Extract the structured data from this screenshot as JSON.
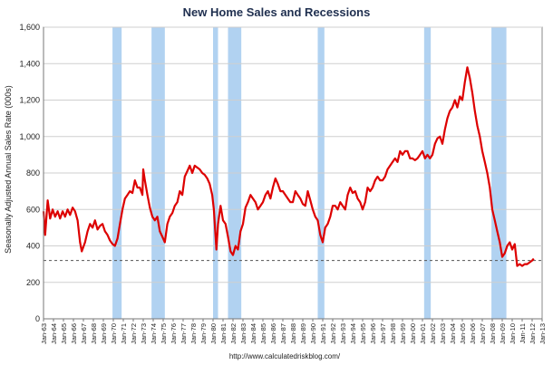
{
  "chart_data": {
    "type": "line",
    "title": "New Home Sales and Recessions",
    "ylabel": "Seasonally Adjusted Annual Sales Rate (000s)",
    "xlabel": "",
    "source": "http://www.calculatedriskblog.com/",
    "ylim": [
      0,
      1600
    ],
    "yticks": [
      "0",
      "200",
      "400",
      "600",
      "800",
      "1,000",
      "1,200",
      "1,400",
      "1,600"
    ],
    "xlim": [
      "1963-01",
      "2013-01"
    ],
    "xticks": [
      "Jan-63",
      "Jan-64",
      "Jan-65",
      "Jan-66",
      "Jan-67",
      "Jan-68",
      "Jan-69",
      "Jan-70",
      "Jan-71",
      "Jan-72",
      "Jan-73",
      "Jan-74",
      "Jan-75",
      "Jan-76",
      "Jan-77",
      "Jan-78",
      "Jan-79",
      "Jan-80",
      "Jan-81",
      "Jan-82",
      "Jan-83",
      "Jan-84",
      "Jan-85",
      "Jan-86",
      "Jan-87",
      "Jan-88",
      "Jan-89",
      "Jan-90",
      "Jan-91",
      "Jan-92",
      "Jan-93",
      "Jan-94",
      "Jan-95",
      "Jan-96",
      "Jan-97",
      "Jan-98",
      "Jan-99",
      "Jan-00",
      "Jan-01",
      "Jan-02",
      "Jan-03",
      "Jan-04",
      "Jan-05",
      "Jan-06",
      "Jan-07",
      "Jan-08",
      "Jan-09",
      "Jan-10",
      "Jan-11",
      "Jan-12",
      "Jan-13"
    ],
    "grid": true,
    "reference_line": {
      "value": 320,
      "style": "dashed"
    },
    "recessions": [
      [
        "1969-12",
        "1970-11"
      ],
      [
        "1973-11",
        "1975-03"
      ],
      [
        "1980-01",
        "1980-07"
      ],
      [
        "1981-07",
        "1982-11"
      ],
      [
        "1990-07",
        "1991-03"
      ],
      [
        "2001-03",
        "2001-11"
      ],
      [
        "2007-12",
        "2009-06"
      ]
    ],
    "series": [
      {
        "color": "#dd0000",
        "points": [
          [
            "1963-01",
            590
          ],
          [
            "1963-03",
            460
          ],
          [
            "1963-06",
            650
          ],
          [
            "1963-09",
            550
          ],
          [
            "1963-12",
            600
          ],
          [
            "1964-03",
            560
          ],
          [
            "1964-06",
            590
          ],
          [
            "1964-09",
            550
          ],
          [
            "1964-12",
            590
          ],
          [
            "1965-03",
            560
          ],
          [
            "1965-06",
            600
          ],
          [
            "1965-09",
            570
          ],
          [
            "1965-12",
            610
          ],
          [
            "1966-03",
            590
          ],
          [
            "1966-06",
            540
          ],
          [
            "1966-09",
            420
          ],
          [
            "1966-11",
            370
          ],
          [
            "1967-03",
            420
          ],
          [
            "1967-06",
            480
          ],
          [
            "1967-09",
            520
          ],
          [
            "1967-12",
            500
          ],
          [
            "1968-03",
            540
          ],
          [
            "1968-06",
            490
          ],
          [
            "1968-09",
            510
          ],
          [
            "1968-12",
            520
          ],
          [
            "1969-03",
            480
          ],
          [
            "1969-06",
            460
          ],
          [
            "1969-09",
            430
          ],
          [
            "1969-12",
            410
          ],
          [
            "1970-03",
            400
          ],
          [
            "1970-06",
            440
          ],
          [
            "1970-09",
            520
          ],
          [
            "1970-12",
            600
          ],
          [
            "1971-03",
            660
          ],
          [
            "1971-06",
            680
          ],
          [
            "1971-09",
            700
          ],
          [
            "1971-12",
            690
          ],
          [
            "1972-03",
            760
          ],
          [
            "1972-06",
            720
          ],
          [
            "1972-09",
            720
          ],
          [
            "1972-12",
            680
          ],
          [
            "1973-01",
            820
          ],
          [
            "1973-03",
            760
          ],
          [
            "1973-06",
            680
          ],
          [
            "1973-09",
            610
          ],
          [
            "1973-12",
            560
          ],
          [
            "1974-03",
            540
          ],
          [
            "1974-06",
            560
          ],
          [
            "1974-09",
            480
          ],
          [
            "1974-12",
            450
          ],
          [
            "1975-03",
            420
          ],
          [
            "1975-06",
            520
          ],
          [
            "1975-09",
            560
          ],
          [
            "1975-12",
            580
          ],
          [
            "1976-03",
            620
          ],
          [
            "1976-06",
            640
          ],
          [
            "1976-09",
            700
          ],
          [
            "1976-12",
            680
          ],
          [
            "1977-03",
            780
          ],
          [
            "1977-06",
            810
          ],
          [
            "1977-09",
            840
          ],
          [
            "1977-12",
            800
          ],
          [
            "1978-03",
            840
          ],
          [
            "1978-06",
            830
          ],
          [
            "1978-09",
            820
          ],
          [
            "1978-12",
            800
          ],
          [
            "1979-03",
            790
          ],
          [
            "1979-06",
            770
          ],
          [
            "1979-09",
            740
          ],
          [
            "1979-12",
            680
          ],
          [
            "1980-02",
            600
          ],
          [
            "1980-05",
            380
          ],
          [
            "1980-07",
            520
          ],
          [
            "1980-10",
            620
          ],
          [
            "1981-01",
            540
          ],
          [
            "1981-04",
            520
          ],
          [
            "1981-07",
            450
          ],
          [
            "1981-10",
            370
          ],
          [
            "1982-01",
            350
          ],
          [
            "1982-04",
            400
          ],
          [
            "1982-07",
            380
          ],
          [
            "1982-10",
            480
          ],
          [
            "1983-01",
            520
          ],
          [
            "1983-04",
            610
          ],
          [
            "1983-07",
            640
          ],
          [
            "1983-10",
            680
          ],
          [
            "1984-01",
            660
          ],
          [
            "1984-04",
            640
          ],
          [
            "1984-07",
            600
          ],
          [
            "1984-10",
            620
          ],
          [
            "1985-01",
            640
          ],
          [
            "1985-04",
            680
          ],
          [
            "1985-07",
            700
          ],
          [
            "1985-10",
            660
          ],
          [
            "1986-01",
            720
          ],
          [
            "1986-04",
            770
          ],
          [
            "1986-07",
            740
          ],
          [
            "1986-10",
            700
          ],
          [
            "1987-01",
            700
          ],
          [
            "1987-04",
            680
          ],
          [
            "1987-07",
            660
          ],
          [
            "1987-10",
            640
          ],
          [
            "1988-01",
            640
          ],
          [
            "1988-04",
            700
          ],
          [
            "1988-07",
            680
          ],
          [
            "1988-10",
            660
          ],
          [
            "1989-01",
            630
          ],
          [
            "1989-04",
            620
          ],
          [
            "1989-07",
            700
          ],
          [
            "1989-10",
            650
          ],
          [
            "1990-01",
            600
          ],
          [
            "1990-04",
            560
          ],
          [
            "1990-07",
            540
          ],
          [
            "1990-10",
            460
          ],
          [
            "1991-01",
            420
          ],
          [
            "1991-04",
            500
          ],
          [
            "1991-07",
            520
          ],
          [
            "1991-10",
            560
          ],
          [
            "1992-01",
            620
          ],
          [
            "1992-04",
            620
          ],
          [
            "1992-07",
            600
          ],
          [
            "1992-10",
            640
          ],
          [
            "1993-01",
            620
          ],
          [
            "1993-04",
            600
          ],
          [
            "1993-07",
            680
          ],
          [
            "1993-10",
            720
          ],
          [
            "1994-01",
            690
          ],
          [
            "1994-04",
            700
          ],
          [
            "1994-07",
            660
          ],
          [
            "1994-10",
            640
          ],
          [
            "1995-01",
            600
          ],
          [
            "1995-04",
            640
          ],
          [
            "1995-07",
            720
          ],
          [
            "1995-10",
            700
          ],
          [
            "1996-01",
            720
          ],
          [
            "1996-04",
            760
          ],
          [
            "1996-07",
            780
          ],
          [
            "1996-10",
            760
          ],
          [
            "1997-01",
            760
          ],
          [
            "1997-04",
            780
          ],
          [
            "1997-07",
            820
          ],
          [
            "1997-10",
            840
          ],
          [
            "1998-01",
            860
          ],
          [
            "1998-04",
            880
          ],
          [
            "1998-07",
            860
          ],
          [
            "1998-10",
            920
          ],
          [
            "1999-01",
            900
          ],
          [
            "1999-04",
            920
          ],
          [
            "1999-07",
            920
          ],
          [
            "1999-10",
            880
          ],
          [
            "2000-01",
            880
          ],
          [
            "2000-04",
            870
          ],
          [
            "2000-07",
            880
          ],
          [
            "2000-10",
            900
          ],
          [
            "2001-01",
            920
          ],
          [
            "2001-04",
            880
          ],
          [
            "2001-07",
            900
          ],
          [
            "2001-10",
            880
          ],
          [
            "2002-01",
            900
          ],
          [
            "2002-04",
            960
          ],
          [
            "2002-07",
            990
          ],
          [
            "2002-10",
            1000
          ],
          [
            "2003-01",
            960
          ],
          [
            "2003-04",
            1040
          ],
          [
            "2003-07",
            1100
          ],
          [
            "2003-10",
            1140
          ],
          [
            "2004-01",
            1160
          ],
          [
            "2004-04",
            1200
          ],
          [
            "2004-07",
            1160
          ],
          [
            "2004-10",
            1220
          ],
          [
            "2005-01",
            1200
          ],
          [
            "2005-04",
            1300
          ],
          [
            "2005-07",
            1380
          ],
          [
            "2005-10",
            1320
          ],
          [
            "2006-01",
            1240
          ],
          [
            "2006-04",
            1140
          ],
          [
            "2006-07",
            1060
          ],
          [
            "2006-10",
            1000
          ],
          [
            "2007-01",
            920
          ],
          [
            "2007-04",
            860
          ],
          [
            "2007-07",
            800
          ],
          [
            "2007-10",
            720
          ],
          [
            "2008-01",
            600
          ],
          [
            "2008-04",
            540
          ],
          [
            "2008-07",
            480
          ],
          [
            "2008-10",
            420
          ],
          [
            "2009-01",
            340
          ],
          [
            "2009-04",
            360
          ],
          [
            "2009-07",
            400
          ],
          [
            "2009-10",
            420
          ],
          [
            "2010-01",
            380
          ],
          [
            "2010-04",
            410
          ],
          [
            "2010-07",
            290
          ],
          [
            "2010-10",
            300
          ],
          [
            "2011-01",
            290
          ],
          [
            "2011-04",
            300
          ],
          [
            "2011-07",
            300
          ],
          [
            "2011-10",
            310
          ],
          [
            "2012-01",
            320
          ],
          [
            "2012-03",
            330
          ]
        ]
      }
    ]
  }
}
